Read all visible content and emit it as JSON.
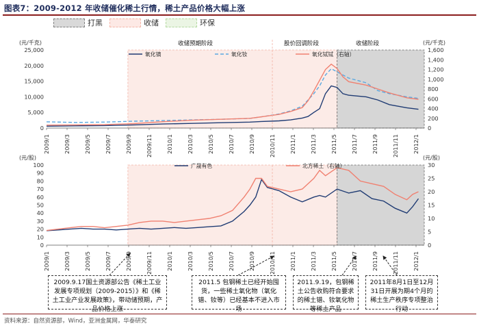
{
  "title": "图表7：2009-2012 年收储催化稀土行情，稀土产品价格大幅上涨",
  "legend_periods": [
    {
      "label": "打黑",
      "fill": "#d9d9d9",
      "border": "#7f7f7f"
    },
    {
      "label": "收储",
      "fill": "#fde9e5",
      "border": "#f4b6a8"
    },
    {
      "label": "环保",
      "fill": "#ebf5e4",
      "border": "#b4d9a0"
    }
  ],
  "phase_labels": [
    "收储预期阶段",
    "股价回调阶段",
    "收储阶段"
  ],
  "colors": {
    "navy": "#1f3b73",
    "lightblue": "#5aa8e0",
    "salmon": "#f08070",
    "shade_gray": "#d6d6d6",
    "shade_pink": "#fcebe7"
  },
  "chart_data": [
    {
      "type": "line",
      "left_unit": "(元/千克)",
      "right_unit": "(元/千克)",
      "x_tick_labels": [
        "2009/1",
        "2009/3",
        "2009/5",
        "2009/7",
        "2009/9",
        "2009/11",
        "2010/1",
        "2010/3",
        "2010/5",
        "2010/7",
        "2010/9",
        "2010/11",
        "2011/1",
        "2011/3",
        "2011/5",
        "2011/7",
        "2011/9",
        "2011/11",
        "2012/1"
      ],
      "x_range": [
        2009.0,
        2012.25
      ],
      "ylim_left": [
        0,
        25000
      ],
      "yticks_left": [
        "0",
        "5,000",
        "10,000",
        "15,000",
        "20,000",
        "25,000"
      ],
      "ylim_right": [
        0,
        1600
      ],
      "yticks_right": [
        "0",
        "200",
        "400",
        "600",
        "800",
        "1,000",
        "1,200",
        "1,400",
        "1,600"
      ],
      "shaded_periods": [
        {
          "kind": "收储",
          "start": 2009.7,
          "end": 2011.5
        },
        {
          "kind": "打黑",
          "start": 2011.5,
          "end": 2012.25
        }
      ],
      "series": [
        {
          "name": "氧化镝",
          "axis": "left",
          "color": "#1f3b73",
          "dash": "",
          "x": [
            2009.0,
            2009.25,
            2009.5,
            2009.75,
            2010.0,
            2010.25,
            2010.5,
            2010.75,
            2010.85,
            2011.0,
            2011.1,
            2011.2,
            2011.25,
            2011.3,
            2011.35,
            2011.4,
            2011.45,
            2011.5,
            2011.55,
            2011.6,
            2011.75,
            2011.85,
            2011.95,
            2012.1,
            2012.2
          ],
          "y": [
            600,
            700,
            800,
            1000,
            1300,
            1500,
            1700,
            1900,
            2100,
            2300,
            2600,
            3200,
            3700,
            5000,
            6200,
            11000,
            13500,
            13000,
            11000,
            10500,
            10000,
            9000,
            7500,
            6500,
            6000
          ]
        },
        {
          "name": "氧化钕",
          "axis": "left",
          "color": "#5aa8e0",
          "dash": "5,3",
          "x": [
            2009.0,
            2009.25,
            2009.5,
            2009.75,
            2010.0,
            2010.25,
            2010.5,
            2010.75,
            2010.85,
            2011.0,
            2011.1,
            2011.2,
            2011.25,
            2011.3,
            2011.35,
            2011.4,
            2011.45,
            2011.5,
            2011.55,
            2011.6,
            2011.75,
            2011.85,
            2011.95,
            2012.1,
            2012.2
          ],
          "y": [
            2000,
            1800,
            1900,
            2200,
            2400,
            2600,
            2800,
            3100,
            3600,
            4500,
            5500,
            7000,
            9000,
            11000,
            13500,
            17000,
            19000,
            18000,
            17000,
            16000,
            14500,
            12000,
            11000,
            10000,
            9500
          ]
        },
        {
          "name": "氧化铽铽（右轴）",
          "axis": "right",
          "color": "#f08070",
          "dash": "",
          "x": [
            2009.0,
            2009.25,
            2009.5,
            2009.75,
            2010.0,
            2010.25,
            2010.5,
            2010.75,
            2010.85,
            2011.0,
            2011.1,
            2011.2,
            2011.25,
            2011.3,
            2011.35,
            2011.4,
            2011.45,
            2011.5,
            2011.55,
            2011.6,
            2011.75,
            2011.85,
            2011.95,
            2012.1,
            2012.2
          ],
          "y": [
            60,
            65,
            70,
            90,
            130,
            160,
            180,
            200,
            230,
            280,
            340,
            420,
            560,
            760,
            980,
            1200,
            1310,
            1220,
            1050,
            950,
            880,
            800,
            720,
            620,
            590
          ]
        }
      ]
    },
    {
      "type": "line",
      "left_unit": "(元/股)",
      "right_unit": "(元/股)",
      "x_tick_labels": [
        "2009/1",
        "2009/3",
        "2009/5",
        "2009/7",
        "2009/9",
        "2009/11",
        "2010/1",
        "2010/3",
        "2010/5",
        "2010/7",
        "2010/9",
        "2010/11",
        "2011/1",
        "2011/3",
        "2011/5",
        "2011/7",
        "2011/9",
        "2011/11",
        "2012/1"
      ],
      "x_range": [
        2009.0,
        2012.25
      ],
      "ylim_left": [
        0,
        100
      ],
      "yticks_left": [
        "0",
        "10",
        "20",
        "30",
        "40",
        "50",
        "60",
        "70",
        "80",
        "90",
        "100"
      ],
      "ylim_right": [
        0,
        30
      ],
      "yticks_right": [
        "0",
        "5",
        "10",
        "15",
        "20",
        "25",
        "30"
      ],
      "shaded_periods": [
        {
          "kind": "收储",
          "start": 2009.7,
          "end": 2011.5
        },
        {
          "kind": "打黑",
          "start": 2011.5,
          "end": 2012.25
        }
      ],
      "series": [
        {
          "name": "广晟有色",
          "axis": "left",
          "color": "#1f3b73",
          "x": [
            2009.0,
            2009.1,
            2009.2,
            2009.3,
            2009.4,
            2009.5,
            2009.6,
            2009.7,
            2009.8,
            2009.9,
            2010.0,
            2010.1,
            2010.2,
            2010.3,
            2010.4,
            2010.5,
            2010.6,
            2010.7,
            2010.75,
            2010.8,
            2010.85,
            2010.9,
            2011.0,
            2011.1,
            2011.2,
            2011.3,
            2011.35,
            2011.4,
            2011.5,
            2011.6,
            2011.7,
            2011.8,
            2011.9,
            2012.0,
            2012.1,
            2012.15,
            2012.2
          ],
          "y": [
            18,
            19,
            20,
            21,
            20,
            20,
            19,
            20,
            21,
            20,
            21,
            22,
            21,
            22,
            23,
            24,
            30,
            42,
            50,
            60,
            82,
            72,
            68,
            60,
            54,
            60,
            62,
            60,
            70,
            65,
            68,
            58,
            55,
            46,
            40,
            48,
            58
          ]
        },
        {
          "name": "北方稀土（右轴）",
          "axis": "right",
          "color": "#f08070",
          "x": [
            2009.0,
            2009.1,
            2009.2,
            2009.3,
            2009.4,
            2009.5,
            2009.6,
            2009.7,
            2009.8,
            2009.9,
            2010.0,
            2010.1,
            2010.2,
            2010.3,
            2010.4,
            2010.5,
            2010.6,
            2010.7,
            2010.75,
            2010.8,
            2010.85,
            2010.9,
            2011.0,
            2011.1,
            2011.2,
            2011.3,
            2011.35,
            2011.4,
            2011.5,
            2011.6,
            2011.7,
            2011.8,
            2011.9,
            2012.0,
            2012.1,
            2012.15,
            2012.2
          ],
          "y": [
            5.5,
            6,
            6.5,
            7,
            7,
            6.5,
            7,
            7.5,
            8.5,
            9,
            9,
            8.5,
            9,
            9.5,
            10,
            11,
            13,
            18,
            21,
            25,
            25,
            22,
            21,
            20,
            21,
            25,
            28,
            26,
            29,
            28,
            24,
            23,
            22,
            19,
            17,
            19,
            20
          ]
        }
      ]
    }
  ],
  "callouts": [
    "2009.9.17国土资源部公告《稀土工业发展专项规划（2009-2015）》和《稀土工业产业发展政策》，带动储预期，产品价格上涨",
    "2011.5 包钢稀土已经开始囤货，一些稀土氧化物（氧化镨、钕等）已经基本不进入市场",
    "2011.9.19，包钢稀土公告收购符合要求的稀土镨、钕氧化物等稀土产品",
    "2011年8月1日至12月31日开展为期4个月的稀土生产秩序专项整治行动"
  ],
  "source": "资料来源：自然资源部，Wind，亚洲金属网，华泰研究"
}
